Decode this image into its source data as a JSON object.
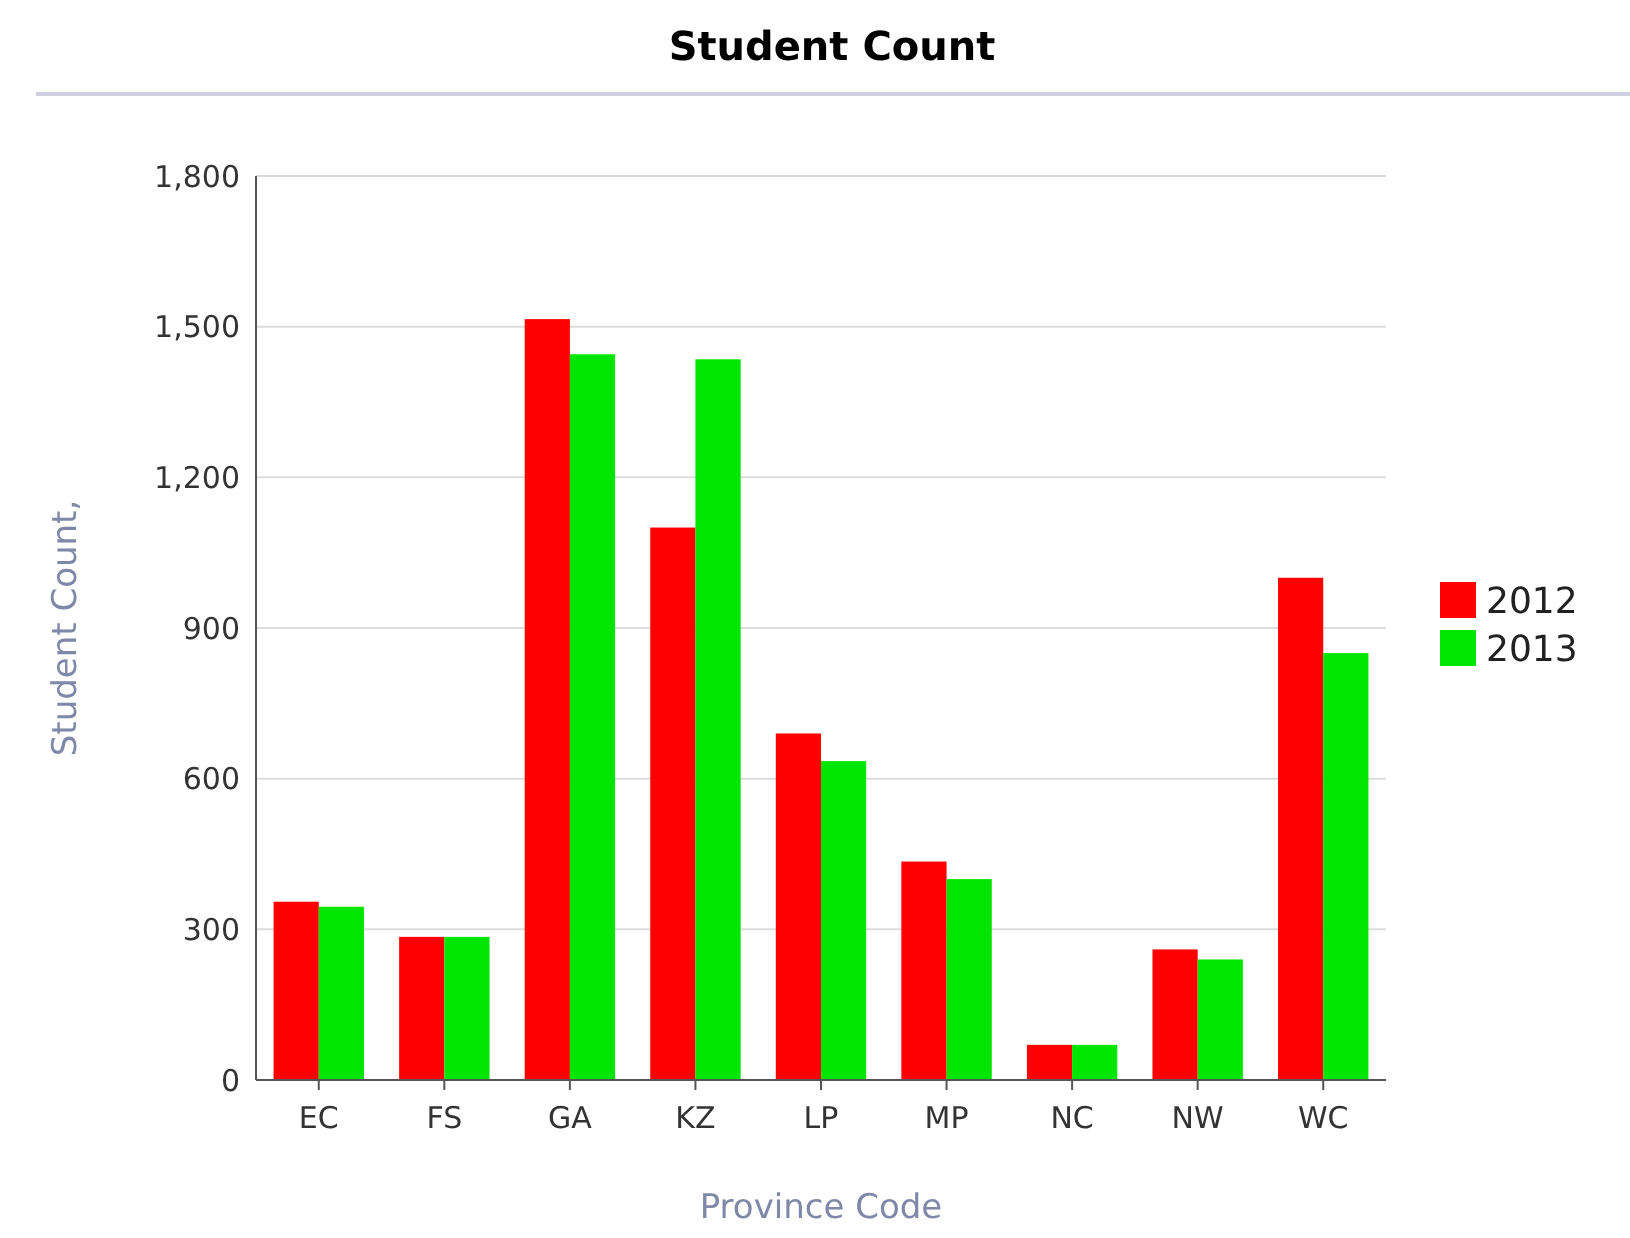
{
  "chart_data": {
    "type": "bar",
    "title": "Student Count",
    "xlabel": "Province Code",
    "ylabel": "Student Count,",
    "categories": [
      "EC",
      "FS",
      "GA",
      "KZ",
      "LP",
      "MP",
      "NC",
      "NW",
      "WC"
    ],
    "series": [
      {
        "name": "2012",
        "color": "#ff0000",
        "values": [
          355,
          285,
          1515,
          1100,
          690,
          435,
          70,
          260,
          1000
        ]
      },
      {
        "name": "2013",
        "color": "#00e600",
        "values": [
          345,
          285,
          1445,
          1435,
          635,
          400,
          70,
          240,
          850
        ]
      }
    ],
    "ylim": [
      0,
      1800
    ],
    "yticks": [
      {
        "value": 0,
        "label": "0"
      },
      {
        "value": 300,
        "label": "300"
      },
      {
        "value": 600,
        "label": "600"
      },
      {
        "value": 900,
        "label": "900"
      },
      {
        "value": 1200,
        "label": "1,200"
      },
      {
        "value": 1500,
        "label": "1,500"
      },
      {
        "value": 1800,
        "label": "1,800"
      }
    ],
    "grid": "y",
    "legend": "right"
  }
}
